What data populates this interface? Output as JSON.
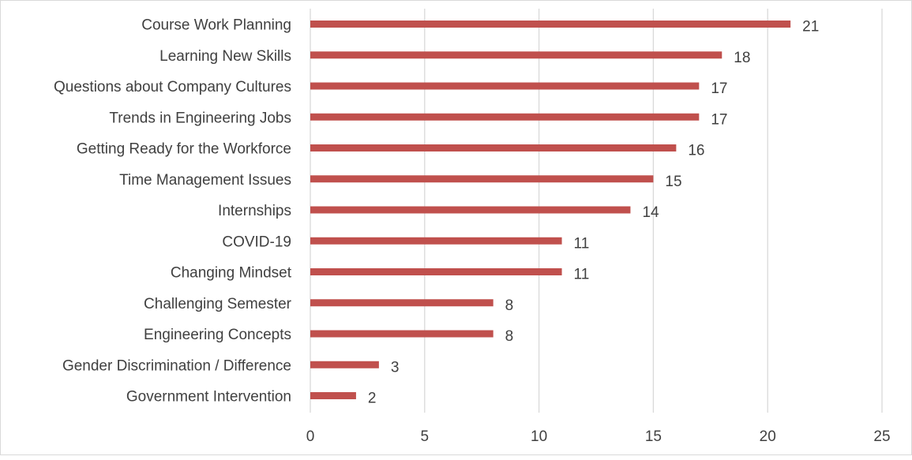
{
  "chart_data": {
    "type": "bar",
    "orientation": "horizontal",
    "categories": [
      "Course Work Planning",
      "Learning New Skills",
      "Questions about Company Cultures",
      "Trends in Engineering Jobs",
      "Getting Ready for the Workforce",
      "Time Management Issues",
      "Internships",
      "COVID-19",
      "Changing Mindset",
      "Challenging Semester",
      "Engineering Concepts",
      "Gender Discrimination / Difference",
      "Government Intervention"
    ],
    "values": [
      21,
      18,
      17,
      17,
      16,
      15,
      14,
      11,
      11,
      8,
      8,
      3,
      2
    ],
    "xlim": [
      0,
      25
    ],
    "xticks": [
      0,
      5,
      10,
      15,
      20,
      25
    ],
    "grid": true,
    "data_labels": true,
    "bar_color": "#c0504d",
    "grid_color": "#d9d9d9",
    "text_color": "#404040",
    "title": "",
    "xlabel": "",
    "ylabel": ""
  }
}
